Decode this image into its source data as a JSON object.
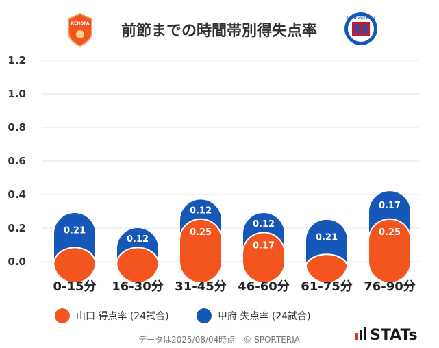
{
  "chart_data": {
    "type": "bar",
    "title": "前節までの時間帯別得失点率",
    "categories": [
      "0-15分",
      "16-30分",
      "31-45分",
      "46-60分",
      "61-75分",
      "76-90分"
    ],
    "series": [
      {
        "name": "山口 得点率 (24試合)",
        "values": [
          0.08,
          0.08,
          0.25,
          0.17,
          0.04,
          0.25
        ],
        "labels": [
          "",
          "",
          "0.25",
          "0.17",
          "",
          "0.25"
        ]
      },
      {
        "name": "甲府 失点率 (24試合)",
        "values": [
          0.21,
          0.12,
          0.12,
          0.12,
          0.21,
          0.17
        ],
        "labels": [
          "0.21",
          "0.12",
          "0.12",
          "0.12",
          "0.21",
          "0.17"
        ]
      }
    ],
    "yticks": [
      "0.0",
      "0.2",
      "0.4",
      "0.6",
      "0.8",
      "1.0",
      "1.2"
    ],
    "ylim": [
      0,
      1.2
    ],
    "grid": true,
    "legend": "bottom"
  },
  "colors": {
    "yamaguchi": "#f2551e",
    "kofu": "#1558b8",
    "grid": "#e3e3e3"
  },
  "logos": {
    "left_text": "RENOFA",
    "right_text": "VENTFORET KOFU"
  },
  "footer": {
    "note": "データは2025/08/04時点　© SPORTERIA",
    "brand": "STATs"
  }
}
